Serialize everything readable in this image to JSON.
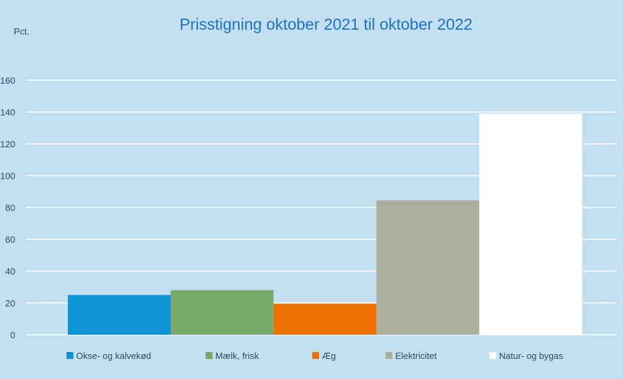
{
  "chart_data": {
    "type": "bar",
    "title": "Prisstigning oktober 2021 til oktober 2022",
    "ylabel": "Pct.",
    "xlabel": "",
    "ylim": [
      0,
      160
    ],
    "yticks": [
      0,
      20,
      40,
      60,
      80,
      100,
      120,
      140,
      160
    ],
    "grid": true,
    "legend_position": "bottom",
    "series": [
      {
        "name": "Okse- og kalvekød",
        "value": 25,
        "color": "#0d93d6"
      },
      {
        "name": "Mælk, frisk",
        "value": 28,
        "color": "#77aa6a"
      },
      {
        "name": "Æg",
        "value": 19.5,
        "color": "#ee7100"
      },
      {
        "name": "Elektricitet",
        "value": 84.5,
        "color": "#aeaea0"
      },
      {
        "name": "Natur- og bygas",
        "value": 139,
        "color": "#ffffff"
      }
    ]
  },
  "colors": {
    "background": "#c5dff2",
    "title": "#1a73bf",
    "text": "#2b4a66",
    "grid": "#ffffff"
  }
}
